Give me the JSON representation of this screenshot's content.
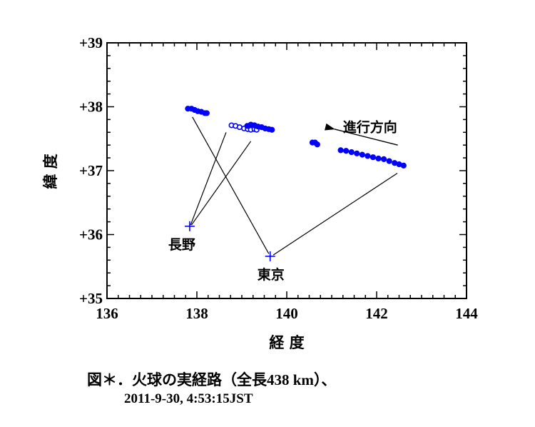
{
  "chart_data": {
    "type": "scatter",
    "title": "図＊．火球の実経路（全長438 km）、",
    "subtitle": "2011-9-30, 4:53:15JST",
    "xlabel": "経 度",
    "ylabel": "緯 度",
    "xlim": [
      136,
      144
    ],
    "ylim": [
      35,
      39
    ],
    "x_ticks": [
      136,
      138,
      140,
      142,
      144
    ],
    "x_tick_labels": [
      "136",
      "138",
      "140",
      "142",
      "144"
    ],
    "x_minor_step": 0.25,
    "y_ticks": [
      35,
      36,
      37,
      38,
      39
    ],
    "y_tick_labels": [
      "+35",
      "+36",
      "+37",
      "+38",
      "+39"
    ],
    "y_minor_step": 0.2,
    "grid": false,
    "legend": null,
    "series": [
      {
        "name": "track-segment-1 (filled)",
        "marker": "filled-circle",
        "color": "#0000ff",
        "points": [
          [
            137.8,
            37.97
          ],
          [
            137.88,
            37.97
          ],
          [
            137.95,
            37.95
          ],
          [
            138.02,
            37.93
          ],
          [
            138.1,
            37.92
          ],
          [
            138.18,
            37.9
          ],
          [
            138.22,
            37.9
          ]
        ]
      },
      {
        "name": "track-segment-2 (open)",
        "marker": "open-circle",
        "color": "#0000ff",
        "points": [
          [
            138.77,
            37.71
          ],
          [
            138.86,
            37.7
          ],
          [
            138.95,
            37.68
          ],
          [
            139.05,
            37.66
          ],
          [
            139.13,
            37.65
          ],
          [
            139.2,
            37.64
          ],
          [
            139.28,
            37.65
          ],
          [
            139.33,
            37.64
          ]
        ]
      },
      {
        "name": "track-segment-2 (filled)",
        "marker": "filled-circle",
        "color": "#0000ff",
        "points": [
          [
            139.12,
            37.7
          ],
          [
            139.2,
            37.72
          ],
          [
            139.28,
            37.71
          ],
          [
            139.36,
            37.69
          ],
          [
            139.44,
            37.68
          ],
          [
            139.52,
            37.66
          ],
          [
            139.6,
            37.65
          ],
          [
            139.67,
            37.64
          ]
        ]
      },
      {
        "name": "track-segment-3 (filled)",
        "marker": "filled-circle",
        "color": "#0000ff",
        "points": [
          [
            140.57,
            37.44
          ],
          [
            140.63,
            37.44
          ],
          [
            140.68,
            37.41
          ]
        ]
      },
      {
        "name": "track-segment-4 (filled)",
        "marker": "filled-circle",
        "color": "#0000ff",
        "points": [
          [
            141.2,
            37.32
          ],
          [
            141.32,
            37.31
          ],
          [
            141.44,
            37.29
          ],
          [
            141.56,
            37.27
          ],
          [
            141.68,
            37.25
          ],
          [
            141.8,
            37.23
          ],
          [
            141.92,
            37.21
          ],
          [
            142.04,
            37.19
          ],
          [
            142.16,
            37.18
          ],
          [
            142.28,
            37.15
          ],
          [
            142.4,
            37.12
          ],
          [
            142.5,
            37.1
          ],
          [
            142.6,
            37.08
          ]
        ]
      }
    ],
    "stations": [
      {
        "name": "長野",
        "lon": 137.84,
        "lat": 36.13,
        "marker": "plus",
        "color": "#0000ff",
        "label_offset": [
          -30,
          32
        ]
      },
      {
        "name": "東京",
        "lon": 139.63,
        "lat": 35.66,
        "marker": "plus",
        "color": "#0000ff",
        "label_offset": [
          -18,
          32
        ]
      }
    ],
    "sight_lines": [
      {
        "from": [
          137.86,
          36.15
        ],
        "to": [
          138.65,
          37.6
        ]
      },
      {
        "from": [
          137.88,
          36.15
        ],
        "to": [
          139.2,
          37.46
        ]
      },
      {
        "from": [
          139.6,
          35.7
        ],
        "to": [
          137.9,
          37.84
        ]
      },
      {
        "from": [
          139.7,
          35.68
        ],
        "to": [
          142.46,
          36.96
        ]
      }
    ],
    "annotations": [
      {
        "text": "進行方向",
        "type": "label",
        "lon": 141.25,
        "lat": 37.7
      },
      {
        "type": "arrow",
        "from": [
          142.47,
          37.4
        ],
        "to": [
          141.06,
          37.65
        ],
        "label": "direction-of-travel-arrow"
      }
    ]
  },
  "caption": {
    "line1_prefix": "図＊．火球の実経路（全長",
    "line1_number": "438 km",
    "line1_suffix": "）、",
    "line2": "2011-9-30, 4:53:15JST"
  }
}
